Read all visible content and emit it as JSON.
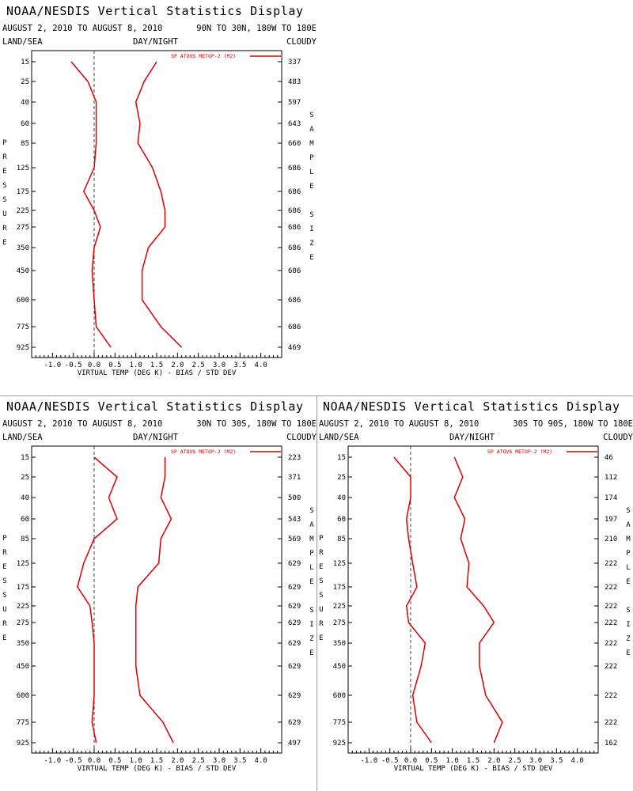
{
  "panels": [
    {
      "title": "NOAA/NESDIS Vertical Statistics Display",
      "period": "AUGUST 2, 2010 TO AUGUST 8, 2010",
      "region": "90N TO 30N, 180W TO 180E",
      "land_sea": "LAND/SEA",
      "day_night": "DAY/NIGHT",
      "cloudy": "CLOUDY",
      "legend": "SP ATOVS METOP-2 (M2)",
      "xlabel": "VIRTUAL TEMP (DEG K) - BIAS / STD DEV",
      "ylabel": "PRESSURE",
      "y2label": "SAMPLE SIZE"
    },
    {
      "title": "NOAA/NESDIS Vertical Statistics Display",
      "period": "AUGUST 2, 2010 TO AUGUST 8, 2010",
      "region": "30N TO 30S, 180W TO 180E",
      "land_sea": "LAND/SEA",
      "day_night": "DAY/NIGHT",
      "cloudy": "CLOUDY",
      "legend": "SP ATOVS METOP-2 (M2)",
      "xlabel": "VIRTUAL TEMP (DEG K) - BIAS / STD DEV",
      "ylabel": "PRESSURE",
      "y2label": "SAMPLE SIZE"
    },
    {
      "title": "NOAA/NESDIS Vertical Statistics Display",
      "period": "AUGUST 2, 2010 TO AUGUST 8, 2010",
      "region": "30S TO 90S, 180W TO 180E",
      "land_sea": "LAND/SEA",
      "day_night": "DAY/NIGHT",
      "cloudy": "CLOUDY",
      "legend": "SP ATOVS METOP-2 (M2)",
      "xlabel": "VIRTUAL TEMP (DEG K) - BIAS / STD DEV",
      "ylabel": "PRESSURE",
      "y2label": "SAMPLE SIZE"
    }
  ],
  "chart_data": [
    {
      "type": "line",
      "pressure_levels": [
        "15",
        "25",
        "40",
        "60",
        "85",
        "125",
        "175",
        "225",
        "275",
        "350",
        "450",
        "600",
        "775",
        "925"
      ],
      "xticks": [
        "-1.0",
        "-0.5",
        "0.0",
        "0.5",
        "1.0",
        "1.5",
        "2.0",
        "2.5",
        "3.0",
        "3.5",
        "4.0"
      ],
      "xlim": [
        -1.5,
        4.5
      ],
      "sample_size": [
        "337",
        "483",
        "597",
        "643",
        "660",
        "686",
        "686",
        "686",
        "686",
        "686",
        "686",
        "686",
        "686",
        "469"
      ],
      "line_color": "#dd0000",
      "series": [
        {
          "name": "bias",
          "values": [
            -0.55,
            -0.15,
            0.05,
            0.05,
            0.05,
            0.0,
            -0.25,
            0.0,
            0.15,
            0.0,
            -0.05,
            0.0,
            0.05,
            0.4
          ]
        },
        {
          "name": "std dev",
          "values": [
            1.5,
            1.2,
            1.0,
            1.1,
            1.05,
            1.4,
            1.6,
            1.7,
            1.7,
            1.3,
            1.15,
            1.15,
            1.6,
            2.1
          ]
        }
      ]
    },
    {
      "type": "line",
      "pressure_levels": [
        "15",
        "25",
        "40",
        "60",
        "85",
        "125",
        "175",
        "225",
        "275",
        "350",
        "450",
        "600",
        "775",
        "925"
      ],
      "xticks": [
        "-1.0",
        "-0.5",
        "0.0",
        "0.5",
        "1.0",
        "1.5",
        "2.0",
        "2.5",
        "3.0",
        "3.5",
        "4.0"
      ],
      "xlim": [
        -1.5,
        4.5
      ],
      "sample_size": [
        "223",
        "371",
        "500",
        "543",
        "569",
        "629",
        "629",
        "629",
        "629",
        "629",
        "629",
        "629",
        "629",
        "497"
      ],
      "line_color": "#dd0000",
      "series": [
        {
          "name": "bias",
          "values": [
            0.0,
            0.55,
            0.35,
            0.55,
            0.0,
            -0.25,
            -0.4,
            -0.1,
            -0.05,
            0.0,
            0.0,
            0.0,
            -0.05,
            0.05
          ]
        },
        {
          "name": "std dev",
          "values": [
            1.7,
            1.7,
            1.6,
            1.85,
            1.6,
            1.55,
            1.05,
            1.0,
            1.0,
            1.0,
            1.0,
            1.1,
            1.65,
            1.9
          ]
        }
      ]
    },
    {
      "type": "line",
      "pressure_levels": [
        "15",
        "25",
        "40",
        "60",
        "85",
        "125",
        "175",
        "225",
        "275",
        "350",
        "450",
        "600",
        "775",
        "925"
      ],
      "xticks": [
        "-1.0",
        "-0.5",
        "0.0",
        "0.5",
        "1.0",
        "1.5",
        "2.0",
        "2.5",
        "3.0",
        "3.5",
        "4.0"
      ],
      "xlim": [
        -1.5,
        4.5
      ],
      "sample_size": [
        "46",
        "112",
        "174",
        "197",
        "210",
        "222",
        "222",
        "222",
        "222",
        "222",
        "222",
        "222",
        "222",
        "162"
      ],
      "line_color": "#dd0000",
      "series": [
        {
          "name": "bias",
          "values": [
            -0.4,
            0.0,
            0.0,
            -0.1,
            -0.05,
            0.05,
            0.15,
            -0.1,
            -0.05,
            0.35,
            0.25,
            0.05,
            0.15,
            0.5
          ]
        },
        {
          "name": "std dev",
          "values": [
            1.05,
            1.25,
            1.05,
            1.3,
            1.2,
            1.4,
            1.35,
            1.75,
            2.0,
            1.65,
            1.65,
            1.8,
            2.2,
            2.0
          ]
        }
      ]
    }
  ]
}
